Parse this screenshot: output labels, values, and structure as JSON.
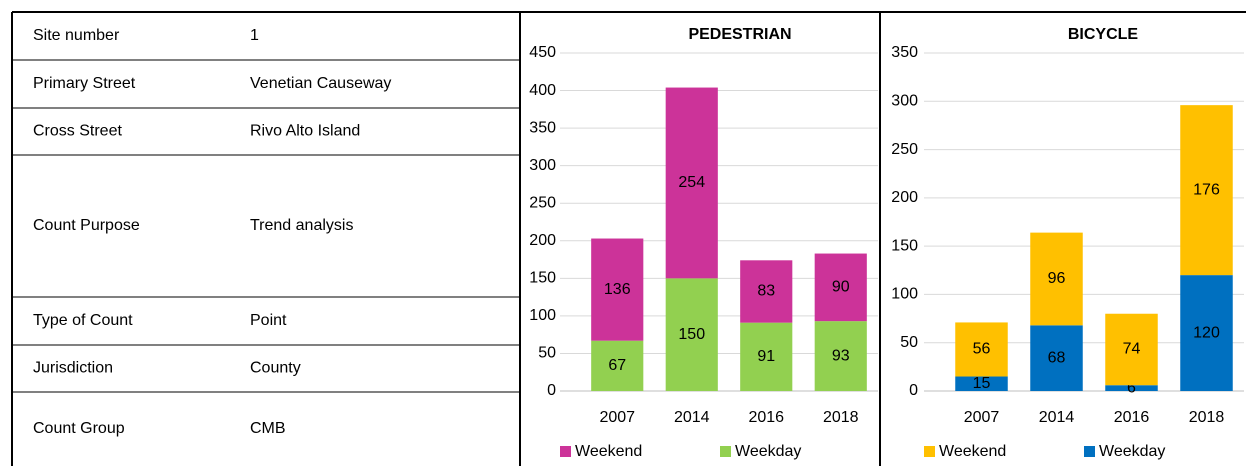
{
  "table": {
    "rows": [
      [
        "Site number",
        "1"
      ],
      [
        "Primary Street",
        "Venetian Causeway"
      ],
      [
        "Cross Street",
        "Rivo Alto Island"
      ],
      [
        "Count Purpose",
        "Trend analysis"
      ],
      [
        "Type of Count",
        "Point"
      ],
      [
        "Jurisdiction",
        "County"
      ],
      [
        "Count Group",
        "CMB"
      ]
    ]
  },
  "chart_data": [
    {
      "type": "stacked_bar",
      "title": "PEDESTRIAN",
      "categories": [
        "2007",
        "2014",
        "2016",
        "2018"
      ],
      "series": [
        {
          "name": "Weekend",
          "color": "#cc3399",
          "values": [
            136,
            254,
            83,
            90
          ]
        },
        {
          "name": "Weekday",
          "color": "#92d050",
          "values": [
            67,
            150,
            91,
            93
          ]
        }
      ],
      "ylim": [
        0,
        450
      ],
      "yticks": [
        0,
        50,
        100,
        150,
        200,
        250,
        300,
        350,
        400,
        450
      ],
      "grid": true,
      "legend": "bottom"
    },
    {
      "type": "stacked_bar",
      "title": "BICYCLE",
      "categories": [
        "2007",
        "2014",
        "2016",
        "2018"
      ],
      "series": [
        {
          "name": "Weekend",
          "color": "#ffc000",
          "values": [
            56,
            96,
            74,
            176
          ]
        },
        {
          "name": "Weekday",
          "color": "#0070c0",
          "values": [
            15,
            68,
            6,
            120
          ]
        }
      ],
      "ylim": [
        0,
        350
      ],
      "yticks": [
        0,
        50,
        100,
        150,
        200,
        250,
        300,
        350
      ],
      "grid": true,
      "legend": "bottom"
    }
  ]
}
